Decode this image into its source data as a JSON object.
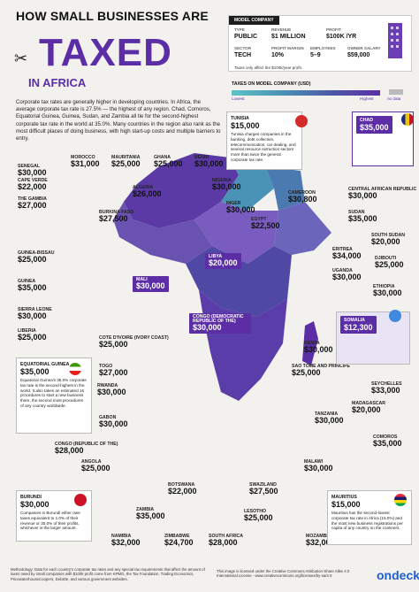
{
  "header": {
    "line1": "HOW SMALL BUSINESSES ARE",
    "line2": "TAXED",
    "line3": "IN AFRICA",
    "intro": "Corporate tax rates are generally higher in developing countries. In Africa, the average corporate tax rate is 27.5% — the highest of any region. Chad, Comoros, Equatorial Guinea, Guinea, Sudan, and Zambia all tie for the second-highest corporate tax rate in the world at 35.0%. Many countries in the region also rank as the most difficult places of doing business, with high start-up costs and multiple barriers to entry."
  },
  "model_company": {
    "title": "MODEL COMPANY",
    "fields": [
      {
        "key": "TYPE",
        "value": "PUBLIC"
      },
      {
        "key": "REVENUE",
        "value": "$1 MILLION"
      },
      {
        "key": "PROFIT",
        "value": "$100K /YR"
      },
      {
        "key": "SECTOR",
        "value": "TECH"
      },
      {
        "key": "PROFIT MARGIN",
        "value": "10%"
      },
      {
        "key": "EMPLOYEES",
        "value": "5–9"
      },
      {
        "key": "OWNER SALARY",
        "value": "$59,000"
      }
    ],
    "note": "Taxes only affect the $100k/year profit."
  },
  "legend": {
    "title": "TAXES ON MODEL COMPANY (USD)",
    "lowest": "Lowest",
    "highest": "Highest",
    "no_data": "no data"
  },
  "countries": [
    {
      "name": "SENEGAL",
      "tax": "$30,000"
    },
    {
      "name": "CAPE VERDE",
      "tax": "$22,000"
    },
    {
      "name": "THE GAMBIA",
      "tax": "$27,000"
    },
    {
      "name": "GUINEA-BISSAU",
      "tax": "$25,000"
    },
    {
      "name": "GUINEA",
      "tax": "$35,000"
    },
    {
      "name": "SIERRA LEONE",
      "tax": "$30,000"
    },
    {
      "name": "LIBERIA",
      "tax": "$25,000"
    },
    {
      "name": "MOROCCO",
      "tax": "$31,000"
    },
    {
      "name": "MAURITANIA",
      "tax": "$25,000"
    },
    {
      "name": "GHANA",
      "tax": "$25,000"
    },
    {
      "name": "BENIN",
      "tax": "$30,000"
    },
    {
      "name": "ALGERIA",
      "tax": "$26,000"
    },
    {
      "name": "NIGERIA",
      "tax": "$30,000"
    },
    {
      "name": "BURKINA FASO",
      "tax": "$27,500"
    },
    {
      "name": "NIGER",
      "tax": "$30,000"
    },
    {
      "name": "EGYPT",
      "tax": "$22,500"
    },
    {
      "name": "CAMEROON",
      "tax": "$30,800"
    },
    {
      "name": "LIBYA",
      "tax": "$20,000"
    },
    {
      "name": "MALI",
      "tax": "$30,000"
    },
    {
      "name": "CENTRAL AFRICAN REPUBLIC",
      "tax": "$30,000"
    },
    {
      "name": "SUDAN",
      "tax": "$35,000"
    },
    {
      "name": "SOUTH SUDAN",
      "tax": "$20,000"
    },
    {
      "name": "ERITREA",
      "tax": "$34,000"
    },
    {
      "name": "DJIBOUTI",
      "tax": "$25,000"
    },
    {
      "name": "UGANDA",
      "tax": "$30,000"
    },
    {
      "name": "ETHIOPIA",
      "tax": "$30,000"
    },
    {
      "name": "COTE D'IVOIRE (IVORY COAST)",
      "tax": "$25,000"
    },
    {
      "name": "CONGO (DEMOCRATIC REPUBLIC OF THE)",
      "tax": "$30,000"
    },
    {
      "name": "TOGO",
      "tax": "$27,000"
    },
    {
      "name": "KENYA",
      "tax": "$30,000"
    },
    {
      "name": "RWANDA",
      "tax": "$30,000"
    },
    {
      "name": "SAO TOME AND PRINCIPE",
      "tax": "$25,000"
    },
    {
      "name": "SEYCHELLES",
      "tax": "$33,000"
    },
    {
      "name": "GABON",
      "tax": "$30,000"
    },
    {
      "name": "MADAGASCAR",
      "tax": "$20,000"
    },
    {
      "name": "CONGO (REPUBLIC OF THE)",
      "tax": "$28,000"
    },
    {
      "name": "TANZANIA",
      "tax": "$30,000"
    },
    {
      "name": "COMOROS",
      "tax": "$35,000"
    },
    {
      "name": "ANGOLA",
      "tax": "$25,000"
    },
    {
      "name": "MALAWI",
      "tax": "$30,000"
    },
    {
      "name": "BOTSWANA",
      "tax": "$22,000"
    },
    {
      "name": "SWAZILAND",
      "tax": "$27,500"
    },
    {
      "name": "ZAMBIA",
      "tax": "$35,000"
    },
    {
      "name": "LESOTHO",
      "tax": "$25,000"
    },
    {
      "name": "NAMIBIA",
      "tax": "$32,000"
    },
    {
      "name": "ZIMBABWE",
      "tax": "$24,700"
    },
    {
      "name": "SOUTH AFRICA",
      "tax": "$28,000"
    },
    {
      "name": "MOZAMBIQUE",
      "tax": "$32,000"
    }
  ],
  "callouts": {
    "tunisia": {
      "name": "TUNISIA",
      "tax": "$15,000",
      "text": "Tunisia charges companies in the banking, debt collection, telecommunication, car dealing, and several resource extraction sectors more than twice the general corporate tax rate."
    },
    "chad": {
      "name": "CHAD",
      "tax": "$35,000"
    },
    "somalia": {
      "name": "SOMALIA",
      "tax": "$12,300"
    },
    "equatorial_guinea": {
      "name": "EQUATORIAL GUINEA",
      "tax": "$35,000",
      "text": "Equatorial Guinea's 35.0% corporate tax rate is the second-highest in the world. It also takes an estimated 16 procedures to start a new business there, the second most procedures of any country worldwide."
    },
    "burundi": {
      "name": "BURUNDI",
      "tax": "$30,000",
      "text": "Companies in Burundi either owe taxes equivalent to 1.0% of their revenue or 30.0% of their profits, whichever is the larger amount."
    },
    "mauritius": {
      "name": "MAURITIUS",
      "tax": "$15,000",
      "text": "Mauritius has the second-lowest corporate tax rate in Africa (15.0%) and the most new business registrations per capita of any country on the continent."
    }
  },
  "footer": {
    "methodology": "Methodology: Data for each country's corporate tax rates and any special tax requirements that affect the amount of taxes owed by small companies with $100k profit come from KPMG, the Tax Foundation, Trading Economics, PricewaterhouseCoopers, Deloitte, and various government websites.",
    "license": "This image is licensed under the Creative Commons Attribution-Share Alike 4.0 International License - www.creativecommons.org/licenses/by-sa/4.0",
    "logo": "ondeck"
  },
  "colors": {
    "accent": "#5b2ea6",
    "teal": "#5ec3c5",
    "mid": "#4b5aa6"
  }
}
